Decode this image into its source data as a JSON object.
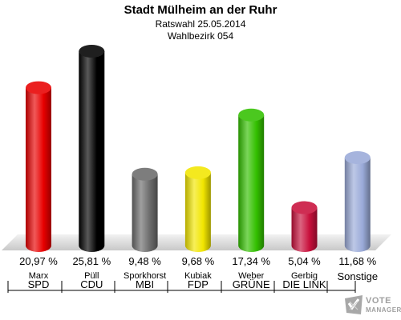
{
  "header": {
    "title": "Stadt Mülheim an der Ruhr",
    "subtitle1": "Ratswahl 25.05.2014",
    "subtitle2": "Wahlbezirk 054"
  },
  "chart_data": {
    "type": "bar",
    "title": "Stadt Mülheim an der Ruhr",
    "subtitle": [
      "Ratswahl 25.05.2014",
      "Wahlbezirk 054"
    ],
    "categories": [
      "SPD",
      "CDU",
      "MBI",
      "FDP",
      "GRÜNE",
      "DIE LINKE",
      "Sonstige"
    ],
    "candidates": [
      "Marx",
      "Püll",
      "Sporkhorst",
      "Kubiak",
      "Weber",
      "Gerbig",
      ""
    ],
    "values": [
      20.97,
      25.81,
      9.48,
      9.68,
      17.34,
      5.04,
      11.68
    ],
    "value_labels": [
      "20,97 %",
      "25,81 %",
      "9,48 %",
      "9,68 %",
      "17,34 %",
      "5,04 %",
      "11,68 %"
    ],
    "party_labels": [
      "SPD",
      "CDU",
      "MBI",
      "FDP",
      "GRÜNE",
      "DIE LINK",
      "Sonstige"
    ],
    "colors": [
      "#e80000",
      "#000000",
      "#6b6b6b",
      "#f2e600",
      "#33c000",
      "#c8103c",
      "#9aaad8"
    ],
    "grid": false,
    "legend": "none"
  },
  "logo": {
    "line1": "VOTE",
    "line2": "MANAGER",
    "icon": "checkmark-cross-icon"
  }
}
